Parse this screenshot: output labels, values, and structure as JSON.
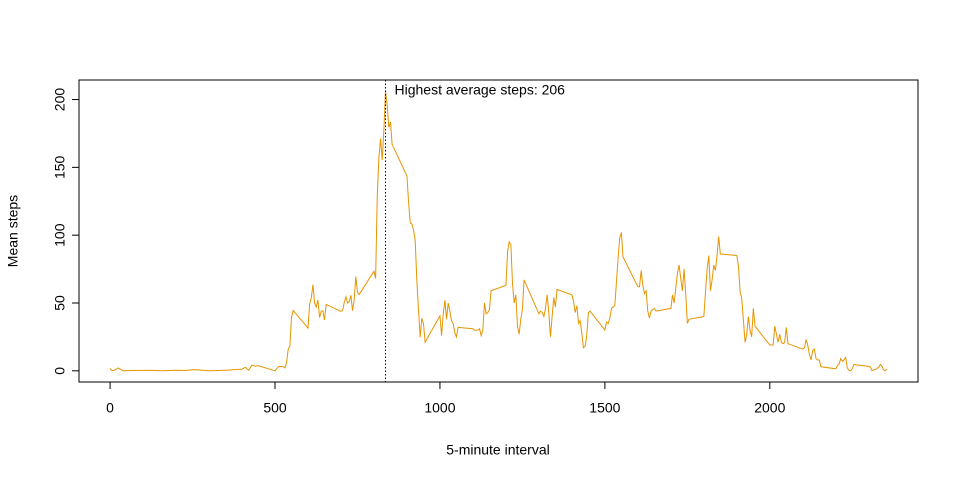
{
  "chart_data": {
    "type": "line",
    "xlabel": "5-minute interval",
    "ylabel": "Mean steps",
    "annotation": "Highest average steps: 206",
    "highlight_x": 835,
    "xlim": [
      -94.2,
      2449.2
    ],
    "ylim": [
      -8.25,
      214.4
    ],
    "xticks": [
      0,
      500,
      1000,
      1500,
      2000
    ],
    "yticks": [
      0,
      50,
      100,
      150,
      200
    ],
    "color": "#e69500",
    "x": [
      0,
      5,
      10,
      25,
      40,
      55,
      100,
      120,
      135,
      155,
      200,
      230,
      255,
      300,
      330,
      355,
      400,
      410,
      420,
      430,
      440,
      450,
      500,
      510,
      520,
      525,
      530,
      535,
      540,
      545,
      550,
      555,
      600,
      605,
      610,
      615,
      620,
      625,
      630,
      635,
      640,
      645,
      650,
      655,
      700,
      705,
      710,
      715,
      720,
      725,
      730,
      735,
      740,
      745,
      750,
      755,
      800,
      805,
      810,
      815,
      820,
      825,
      830,
      835,
      840,
      845,
      850,
      855,
      900,
      905,
      910,
      915,
      920,
      925,
      930,
      935,
      940,
      945,
      950,
      955,
      1000,
      1005,
      1010,
      1015,
      1020,
      1025,
      1030,
      1035,
      1040,
      1045,
      1050,
      1055,
      1100,
      1105,
      1110,
      1115,
      1120,
      1125,
      1130,
      1135,
      1140,
      1145,
      1150,
      1155,
      1200,
      1205,
      1210,
      1215,
      1220,
      1225,
      1230,
      1235,
      1240,
      1245,
      1250,
      1255,
      1300,
      1305,
      1310,
      1315,
      1320,
      1325,
      1330,
      1335,
      1340,
      1345,
      1350,
      1355,
      1400,
      1405,
      1410,
      1415,
      1420,
      1425,
      1430,
      1435,
      1440,
      1445,
      1450,
      1455,
      1500,
      1505,
      1510,
      1515,
      1520,
      1525,
      1530,
      1535,
      1540,
      1545,
      1550,
      1555,
      1600,
      1605,
      1610,
      1615,
      1620,
      1625,
      1630,
      1635,
      1640,
      1645,
      1650,
      1655,
      1700,
      1705,
      1710,
      1715,
      1720,
      1725,
      1730,
      1735,
      1740,
      1745,
      1750,
      1755,
      1800,
      1805,
      1810,
      1815,
      1820,
      1825,
      1830,
      1835,
      1840,
      1845,
      1850,
      1855,
      1900,
      1905,
      1910,
      1915,
      1920,
      1925,
      1930,
      1935,
      1940,
      1945,
      1950,
      1955,
      2000,
      2005,
      2010,
      2015,
      2020,
      2025,
      2030,
      2035,
      2040,
      2045,
      2050,
      2055,
      2100,
      2105,
      2110,
      2115,
      2120,
      2125,
      2130,
      2135,
      2140,
      2145,
      2150,
      2155,
      2200,
      2205,
      2210,
      2215,
      2220,
      2225,
      2230,
      2235,
      2240,
      2245,
      2250,
      2255,
      2300,
      2305,
      2310,
      2315,
      2320,
      2325,
      2330,
      2335,
      2340,
      2345,
      2350,
      2355
    ],
    "values": [
      1.7,
      0.3,
      0.1,
      2.1,
      0,
      0.1,
      0.3,
      0.4,
      0.2,
      0,
      0.4,
      0.3,
      0.9,
      0,
      0.2,
      0.5,
      1.2,
      2.6,
      0.3,
      4.1,
      3.5,
      3.7,
      0,
      3,
      3.3,
      3,
      2.1,
      6.1,
      16,
      18.3,
      39.5,
      44.5,
      31.5,
      49.3,
      53.8,
      63.5,
      50,
      47.1,
      52.2,
      39.3,
      44,
      44.2,
      37.4,
      49,
      43.8,
      44.4,
      50.5,
      54.5,
      49.9,
      51,
      55.7,
      44.3,
      52.3,
      69.5,
      57.8,
      56.2,
      73.4,
      68.2,
      129.4,
      157.5,
      171.2,
      155.4,
      177.3,
      206.2,
      195.9,
      179.6,
      183.4,
      167,
      143.5,
      124,
      109.1,
      108.1,
      103.7,
      96,
      66.2,
      45.2,
      24.8,
      38.8,
      35,
      21.1,
      40.6,
      26,
      42,
      52,
      38,
      50,
      44,
      37,
      35,
      28,
      25,
      32,
      31,
      30,
      30,
      30,
      31,
      26,
      30,
      50,
      42,
      43,
      45,
      59,
      63,
      88,
      95,
      93,
      64,
      50,
      56,
      33,
      27,
      38,
      45,
      67,
      42,
      44,
      43,
      40,
      46,
      56,
      43,
      25,
      40,
      54,
      47,
      60,
      56,
      51,
      43,
      48,
      35,
      37,
      28,
      17,
      18,
      26,
      43,
      44,
      30,
      36,
      35,
      39,
      46,
      47,
      48,
      65,
      83,
      98,
      102,
      84,
      62,
      62,
      74,
      63,
      57,
      59,
      44,
      39,
      44,
      45,
      46,
      44,
      46,
      56,
      50,
      61,
      72,
      78,
      68,
      59,
      75,
      57,
      35,
      38,
      40,
      58,
      75,
      85,
      59,
      67,
      78,
      74,
      85,
      99,
      86,
      86,
      85,
      77,
      58,
      53,
      37,
      21,
      27,
      40,
      30,
      25,
      46,
      33,
      19,
      19,
      19,
      33,
      27,
      21,
      27,
      21,
      20,
      21,
      32,
      20,
      16,
      17,
      23,
      19,
      12,
      8,
      15,
      16,
      9,
      8,
      8,
      3,
      1.5,
      4,
      5,
      9,
      7,
      8,
      9.8,
      2,
      0.4,
      0.1,
      1.6,
      4.6,
      3.3,
      2.8,
      0,
      0.8,
      1,
      1.6,
      2.6,
      4.7,
      3.3,
      0.6,
      0.2,
      1.1
    ]
  }
}
